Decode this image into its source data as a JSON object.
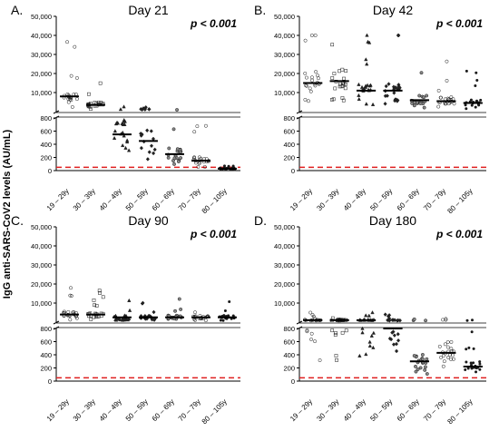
{
  "figure": {
    "ylabel": "IgG anti-SARS-CoV2 levels (AU/mL)",
    "threshold_color": "#e02020",
    "marker_color": "#1a1a1a"
  },
  "chart_data": [
    {
      "type": "scatter",
      "letter": "A.",
      "title": "Day 21",
      "p_value": "p < 0.001",
      "categories": [
        "19 – 29y",
        "30 – 39y",
        "40 – 49y",
        "50 – 59y",
        "60 – 69y",
        "70 – 79y",
        "80 – 105y"
      ],
      "y_upper_ticks": [
        "50,000",
        "40,000",
        "30,000",
        "20,000",
        "10,000"
      ],
      "y_lower_ticks": [
        "800",
        "600",
        "400",
        "200",
        "0"
      ],
      "ylim_upper": [
        0,
        50000
      ],
      "ylim_lower": [
        0,
        800
      ],
      "threshold": 50,
      "medians": [
        8000,
        3500,
        550,
        450,
        250,
        150,
        30
      ]
    },
    {
      "type": "scatter",
      "letter": "B.",
      "title": "Day 42",
      "p_value": "p < 0.001",
      "categories": [
        "19 – 29y",
        "30 – 39y",
        "40 – 49y",
        "50 – 59y",
        "60 – 69y",
        "70 – 79y",
        "80 – 105y"
      ],
      "y_upper_ticks": [
        "50,000",
        "40,000",
        "30,000",
        "20,000",
        "10,000"
      ],
      "y_lower_ticks": [
        "800",
        "600",
        "400",
        "200",
        "0"
      ],
      "ylim_upper": [
        0,
        50000
      ],
      "ylim_lower": [
        0,
        800
      ],
      "threshold": 50,
      "medians": [
        15000,
        16000,
        11000,
        11000,
        6000,
        5500,
        4500
      ]
    },
    {
      "type": "scatter",
      "letter": "C.",
      "title": "Day 90",
      "p_value": "p < 0.001",
      "categories": [
        "19 – 29y",
        "30 – 39y",
        "40 – 49y",
        "50 – 59y",
        "60 – 69y",
        "70 – 79y",
        "80 – 105y"
      ],
      "y_upper_ticks": [
        "50,000",
        "40,000",
        "30,000",
        "20,000",
        "10,000"
      ],
      "y_lower_ticks": [
        "800",
        "600",
        "400",
        "200",
        "0"
      ],
      "ylim_upper": [
        0,
        50000
      ],
      "ylim_lower": [
        0,
        800
      ],
      "threshold": 50,
      "medians": [
        4000,
        4000,
        2500,
        2500,
        2500,
        2500,
        2500
      ]
    },
    {
      "type": "scatter",
      "letter": "D.",
      "title": "Day 180",
      "p_value": "p < 0.001",
      "categories": [
        "19 – 29y",
        "30 – 39y",
        "40 – 49y",
        "50 – 59y",
        "60 – 69y",
        "70 – 79y",
        "80 – 105y"
      ],
      "y_upper_ticks": [
        "50,000",
        "40,000",
        "30,000",
        "20,000",
        "10,000"
      ],
      "y_lower_ticks": [
        "800",
        "600",
        "400",
        "200",
        "0"
      ],
      "ylim_upper": [
        0,
        50000
      ],
      "ylim_lower": [
        0,
        800
      ],
      "threshold": 50,
      "medians": [
        1000,
        1000,
        1000,
        800,
        300,
        430,
        220
      ]
    }
  ]
}
